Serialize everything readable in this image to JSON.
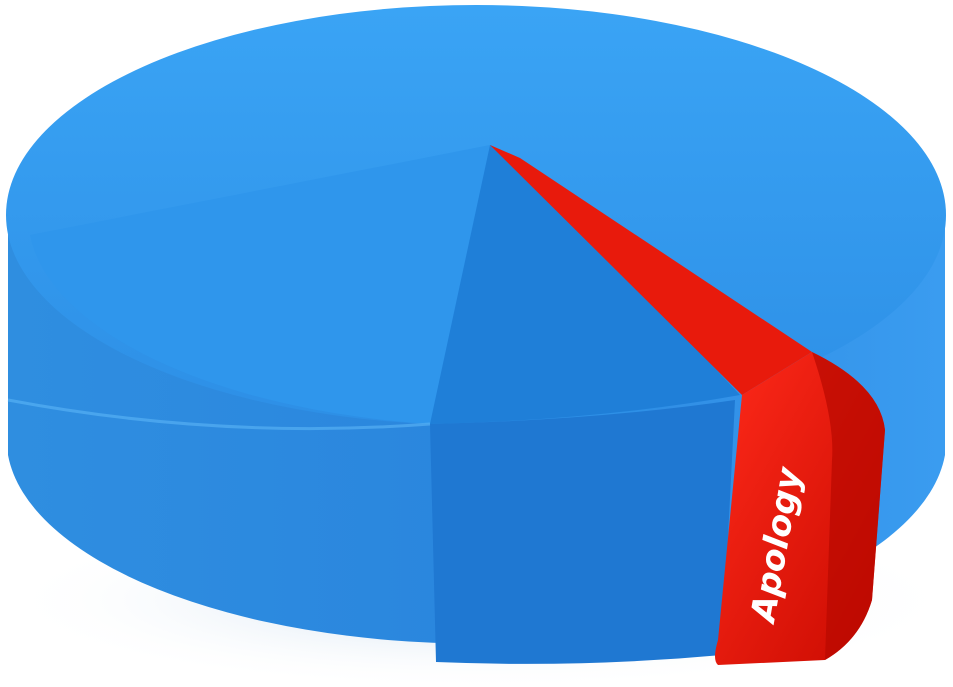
{
  "label": "Apology"
}
